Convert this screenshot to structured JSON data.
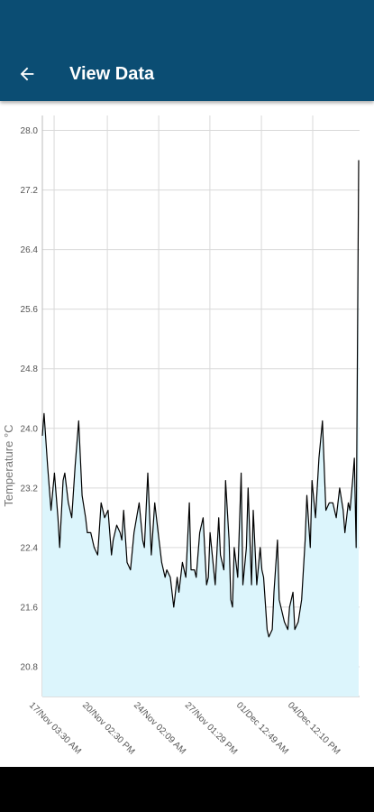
{
  "header": {
    "title": "View Data",
    "back_icon": "arrow-left-icon",
    "background_color": "#0b4d73"
  },
  "chart_data": {
    "type": "area",
    "title": "",
    "xlabel": "",
    "ylabel": "Temperature °C",
    "ylim": [
      20.4,
      28.2
    ],
    "yticks": [
      20.8,
      21.6,
      22.4,
      23.2,
      24.0,
      24.8,
      25.6,
      26.4,
      27.2,
      28.0
    ],
    "ytick_labels": [
      "20.8",
      "21.6",
      "22.4",
      "23.2",
      "24.0",
      "24.8",
      "25.6",
      "26.4",
      "27.2",
      "28.0"
    ],
    "xlim": [
      0,
      18.35
    ],
    "xtick_positions": [
      0.68,
      3.76,
      6.73,
      9.69,
      12.67,
      15.64
    ],
    "xtick_labels": [
      "17/Nov 03:30 AM",
      "20/Nov 02:30 PM",
      "24/Nov 02:09 AM",
      "27/Nov 01:29 PM",
      "01/Dec 12:49 AM",
      "04/Dec 12:10 PM"
    ],
    "grid": true,
    "fill_color": "#dcf5fc",
    "line_color": "#000000",
    "series": [
      {
        "x": [
          0,
          0.1,
          0.3,
          0.5,
          0.7,
          0.9,
          1.0,
          1.2,
          1.3,
          1.5,
          1.7,
          1.9,
          2.1,
          2.3,
          2.5,
          2.6,
          2.8,
          3.0,
          3.2,
          3.4,
          3.6,
          3.8,
          4.0,
          4.1,
          4.3,
          4.5,
          4.6,
          4.7,
          4.9,
          5.1,
          5.3,
          5.6,
          5.8,
          5.9,
          6.1,
          6.3,
          6.5,
          6.7,
          6.9,
          7.1,
          7.2,
          7.4,
          7.6,
          7.8,
          7.9,
          8.1,
          8.3,
          8.5,
          8.6,
          8.8,
          8.9,
          9.1,
          9.3,
          9.5,
          9.6,
          9.7,
          10.0,
          10.2,
          10.3,
          10.5,
          10.6,
          10.8,
          10.9,
          11.0,
          11.1,
          11.3,
          11.5,
          11.6,
          11.8,
          11.9,
          12.1,
          12.2,
          12.4,
          12.6,
          12.7,
          12.8,
          13.0,
          13.1,
          13.3,
          13.4,
          13.6,
          13.7,
          13.8,
          14.0,
          14.2,
          14.3,
          14.5,
          14.6,
          14.8,
          15.0,
          15.2,
          15.3,
          15.5,
          15.6,
          15.8,
          16.0,
          16.2,
          16.4,
          16.6,
          16.8,
          17.0,
          17.2,
          17.4,
          17.5,
          17.7,
          17.8,
          17.95,
          18.05,
          18.15,
          18.3
        ],
        "y": [
          23.9,
          24.2,
          23.5,
          22.9,
          23.4,
          22.8,
          22.4,
          23.3,
          23.4,
          23.0,
          22.8,
          23.5,
          24.1,
          23.1,
          22.8,
          22.6,
          22.6,
          22.4,
          22.3,
          23.0,
          22.8,
          22.9,
          22.3,
          22.5,
          22.7,
          22.6,
          22.5,
          22.9,
          22.2,
          22.1,
          22.6,
          23.0,
          22.5,
          22.4,
          23.4,
          22.3,
          23.0,
          22.6,
          22.2,
          22.0,
          22.1,
          22.0,
          21.6,
          22.0,
          21.8,
          22.2,
          22.0,
          23.0,
          22.1,
          22.1,
          22.0,
          22.6,
          22.8,
          21.9,
          22.0,
          22.6,
          21.9,
          22.8,
          22.3,
          22.1,
          23.3,
          22.5,
          21.7,
          21.6,
          22.4,
          22.0,
          23.4,
          21.9,
          22.4,
          23.2,
          21.9,
          22.9,
          21.9,
          22.4,
          22.1,
          22.0,
          21.3,
          21.2,
          21.3,
          21.8,
          22.5,
          21.7,
          21.6,
          21.4,
          21.3,
          21.6,
          21.8,
          21.3,
          21.4,
          21.7,
          22.5,
          23.1,
          22.4,
          23.3,
          22.8,
          23.6,
          24.1,
          22.9,
          23.0,
          23.0,
          22.8,
          23.2,
          22.9,
          22.6,
          23.0,
          22.9,
          23.3,
          23.6,
          22.4,
          27.6
        ]
      }
    ]
  }
}
